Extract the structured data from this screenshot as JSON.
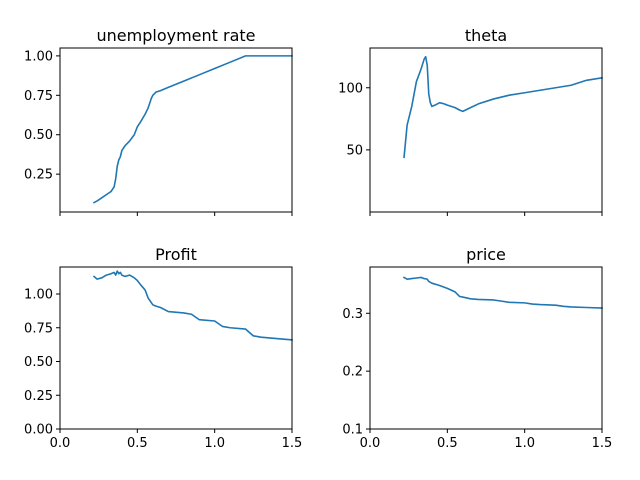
{
  "chart_data": [
    {
      "type": "line",
      "title": "unemployment rate",
      "xlim": [
        0,
        1.5
      ],
      "ylim": [
        0.01,
        1.05
      ],
      "xticks": [
        0,
        0.5,
        1,
        1.5
      ],
      "xtick_labels": [],
      "yticks": [
        0.25,
        0.5,
        0.75,
        1.0
      ],
      "ytick_labels": [
        "0.25",
        "0.50",
        "0.75",
        "1.00"
      ],
      "grid": false,
      "color": "#1f77b4",
      "x": [
        0.22,
        0.24,
        0.27,
        0.3,
        0.33,
        0.35,
        0.36,
        0.37,
        0.38,
        0.39,
        0.4,
        0.42,
        0.45,
        0.48,
        0.5,
        0.52,
        0.55,
        0.57,
        0.58,
        0.59,
        0.6,
        0.62,
        0.65,
        0.7,
        0.8,
        0.9,
        1.0,
        1.1,
        1.2,
        1.3,
        1.35,
        1.5
      ],
      "y": [
        0.07,
        0.08,
        0.1,
        0.12,
        0.14,
        0.17,
        0.22,
        0.3,
        0.34,
        0.36,
        0.4,
        0.43,
        0.46,
        0.5,
        0.55,
        0.58,
        0.63,
        0.67,
        0.7,
        0.73,
        0.75,
        0.77,
        0.78,
        0.8,
        0.84,
        0.88,
        0.92,
        0.96,
        1.0,
        1.0,
        1.0,
        1.0
      ]
    },
    {
      "type": "line",
      "title": "theta",
      "xlim": [
        0,
        1.5
      ],
      "ylim": [
        0,
        132
      ],
      "xticks": [
        0,
        0.5,
        1,
        1.5
      ],
      "xtick_labels": [],
      "yticks": [
        50,
        100
      ],
      "ytick_labels": [
        "50",
        "100"
      ],
      "grid": false,
      "color": "#1f77b4",
      "x": [
        0.22,
        0.24,
        0.27,
        0.3,
        0.33,
        0.35,
        0.36,
        0.37,
        0.38,
        0.39,
        0.4,
        0.42,
        0.45,
        0.48,
        0.5,
        0.55,
        0.58,
        0.6,
        0.65,
        0.7,
        0.8,
        0.9,
        1.0,
        1.1,
        1.2,
        1.3,
        1.35,
        1.4,
        1.5
      ],
      "y": [
        44,
        70,
        85,
        105,
        115,
        123,
        125,
        118,
        95,
        88,
        85,
        86,
        88,
        87,
        86,
        84,
        82,
        81,
        84,
        87,
        91,
        94,
        96,
        98,
        100,
        102,
        104,
        106,
        108
      ]
    },
    {
      "type": "line",
      "title": "Profit",
      "xlim": [
        0,
        1.5
      ],
      "ylim": [
        0,
        1.2
      ],
      "xticks": [
        0,
        0.5,
        1,
        1.5
      ],
      "xtick_labels": [
        "0.0",
        "0.5",
        "1.0",
        "1.5"
      ],
      "yticks": [
        0,
        0.25,
        0.5,
        0.75,
        1.0
      ],
      "ytick_labels": [
        "0.00",
        "0.25",
        "0.50",
        "0.75",
        "1.00"
      ],
      "grid": false,
      "color": "#1f77b4",
      "x": [
        0.22,
        0.24,
        0.27,
        0.3,
        0.33,
        0.35,
        0.36,
        0.37,
        0.38,
        0.39,
        0.4,
        0.42,
        0.45,
        0.48,
        0.5,
        0.52,
        0.55,
        0.57,
        0.6,
        0.62,
        0.65,
        0.7,
        0.8,
        0.85,
        0.9,
        1.0,
        1.05,
        1.1,
        1.2,
        1.25,
        1.3,
        1.4,
        1.5
      ],
      "y": [
        1.13,
        1.11,
        1.12,
        1.14,
        1.15,
        1.16,
        1.14,
        1.17,
        1.15,
        1.16,
        1.14,
        1.13,
        1.14,
        1.12,
        1.1,
        1.07,
        1.03,
        0.97,
        0.92,
        0.91,
        0.9,
        0.87,
        0.86,
        0.85,
        0.81,
        0.8,
        0.76,
        0.75,
        0.74,
        0.69,
        0.68,
        0.67,
        0.66
      ]
    },
    {
      "type": "line",
      "title": "price",
      "xlim": [
        0,
        1.5
      ],
      "ylim": [
        0.1,
        0.38
      ],
      "xticks": [
        0,
        0.5,
        1,
        1.5
      ],
      "xtick_labels": [
        "0.0",
        "0.5",
        "1.0",
        "1.5"
      ],
      "yticks": [
        0.1,
        0.2,
        0.3
      ],
      "ytick_labels": [
        "0.1",
        "0.2",
        "0.3"
      ],
      "grid": false,
      "color": "#1f77b4",
      "x": [
        0.22,
        0.24,
        0.27,
        0.3,
        0.33,
        0.35,
        0.37,
        0.38,
        0.4,
        0.45,
        0.5,
        0.55,
        0.58,
        0.6,
        0.65,
        0.7,
        0.8,
        0.85,
        0.9,
        1.0,
        1.05,
        1.1,
        1.2,
        1.25,
        1.3,
        1.4,
        1.5
      ],
      "y": [
        0.362,
        0.359,
        0.36,
        0.361,
        0.362,
        0.36,
        0.359,
        0.355,
        0.352,
        0.348,
        0.343,
        0.337,
        0.329,
        0.328,
        0.325,
        0.324,
        0.323,
        0.321,
        0.319,
        0.318,
        0.316,
        0.315,
        0.314,
        0.312,
        0.311,
        0.31,
        0.309
      ]
    }
  ]
}
